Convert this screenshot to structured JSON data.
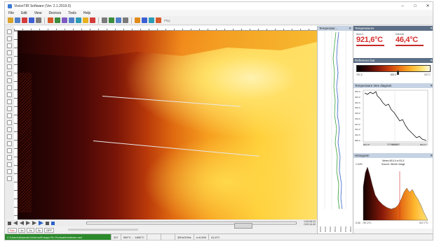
{
  "app": {
    "title": "VisionTIR Software (Ver. 2.1.2019.0)",
    "window_controls": [
      "–",
      "□",
      "✕"
    ]
  },
  "menu": [
    "File",
    "Edit",
    "View",
    "Devices",
    "Tools",
    "Help"
  ],
  "toolbar": {
    "icons": [
      {
        "name": "open-folder-icon",
        "color": "#d9a22a"
      },
      {
        "name": "save-icon",
        "color": "#4f7fc8"
      },
      {
        "name": "record-icon",
        "color": "#d33b3b"
      },
      {
        "name": "stop-icon",
        "color": "#3b5fd3"
      },
      {
        "name": "snapshot-icon",
        "color": "#7a7a7a"
      },
      {
        "name": "palette-icon",
        "color": "#d65a2b"
      },
      {
        "name": "grid-icon",
        "color": "#3c8c3c"
      },
      {
        "name": "chart-icon",
        "color": "#7c5ac2"
      },
      {
        "name": "camera-icon",
        "color": "#4f7fc8"
      },
      {
        "name": "area-icon",
        "color": "#2c9bb6"
      },
      {
        "name": "line-tool-icon",
        "color": "#e6b020"
      },
      {
        "name": "point-tool-icon",
        "color": "#d33b3b"
      },
      {
        "name": "histogram-icon",
        "color": "#7a7a7a"
      },
      {
        "name": "profile-icon",
        "color": "#3c8c3c"
      },
      {
        "name": "zoom-icon",
        "color": "#4f7fc8"
      },
      {
        "name": "settings-icon",
        "color": "#7a7a7a"
      },
      {
        "name": "export-icon",
        "color": "#e08a1a"
      },
      {
        "name": "report-icon",
        "color": "#3b5fd3"
      },
      {
        "name": "fullscreen-icon",
        "color": "#2c9bb6"
      },
      {
        "name": "info-icon",
        "color": "#d65a2b"
      }
    ],
    "label": "Play"
  },
  "player": {
    "time_top": "0:00:06:23",
    "time_bottom": "0:00:14:49",
    "buttons": [
      "Rec",
      "1x",
      "2x",
      "3x",
      "OPT"
    ]
  },
  "status": {
    "path": "C:\\Users\\Alejandro\\Videos\\Ensayo Ru Puntual\\medicion.ravi",
    "cells": [
      "207",
      "900°C ... 1800°C",
      "",
      "",
      "32Hz/20Hz",
      "x=0,900",
      "41,5°C"
    ]
  },
  "temp_profile": {
    "title": "Temperatur...",
    "axis": [
      "826,0",
      "836,0",
      "846,0",
      "856,0",
      "866,0",
      "876,0",
      "886,0"
    ]
  },
  "temperatures": {
    "title": "Temperatures",
    "area1_label": "Area 1",
    "area1_value": "921,6°C",
    "internal_label": "Internal",
    "internal_value": "46,4°C"
  },
  "reference_bar": {
    "title": "Reference bar",
    "min": "757,2",
    "mid": "835,2",
    "max": "917,7"
  },
  "time_diagram": {
    "title": "Temperature time diagram",
    "y_ticks": [
      "926,0",
      "924,0",
      "922,0",
      "920,0",
      "918,0",
      "916,0",
      "914,0",
      "912,0",
      "910,0",
      "908,0"
    ],
    "x_ticks": [
      "826,07",
      "833,07",
      "836,07"
    ]
  },
  "histogram": {
    "title": "Histogram",
    "caption_line1": "Mean=810,4 s=51,5",
    "caption_line2": "Source: Whole image",
    "y_max": "1,04%",
    "y_min": "0,00",
    "x_min": "757,2°C",
    "x_max": "917,7°C"
  },
  "colors": {
    "accent": "#c6d3e4",
    "temp_red": "#d62d2d",
    "status_green": "#2c8a2c"
  }
}
